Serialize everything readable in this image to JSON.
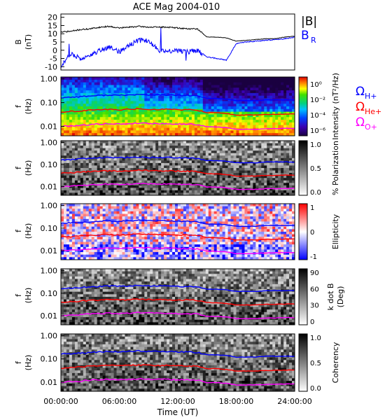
{
  "figure": {
    "title": "ACE Mag 2004-010",
    "xlabel": "Time (UT)",
    "xticks": [
      "00:00:00",
      "06:00:00",
      "12:00:00",
      "18:00:00",
      "24:00:00"
    ]
  },
  "colors": {
    "B_total": "#000000",
    "B_R": "#0000ff",
    "omega_H": "#0000ff",
    "omega_He": "#ff0000",
    "omega_O": "#ff00ff"
  },
  "legend": {
    "btotal": "|B|",
    "br": "B",
    "br_sub": "R",
    "oh": "Ω",
    "oh_sub": "H+",
    "ohe": "Ω",
    "ohe_sub": "He+",
    "oo": "Ω",
    "oo_sub": "O+"
  },
  "chart_data": [
    {
      "type": "line",
      "panel": "magnetic-field",
      "ylabel": "B",
      "yunit": "(nT)",
      "ylim": [
        -12,
        22
      ],
      "yticks": [
        "20",
        "15",
        "10",
        "5",
        "0",
        "-5",
        "-10"
      ],
      "x_hours": [
        0,
        1,
        2,
        3,
        4,
        5,
        6,
        7,
        8,
        9,
        10,
        11,
        12,
        13,
        14,
        15,
        16,
        17,
        18,
        19,
        20,
        21,
        22,
        23,
        24
      ],
      "series": [
        {
          "name": "|B|",
          "values": [
            11,
            11.5,
            12.5,
            13,
            14,
            14.5,
            13.5,
            14,
            14.5,
            14,
            14,
            14,
            13.5,
            13,
            13,
            8,
            8,
            7.5,
            5.5,
            6,
            6.5,
            7,
            7,
            8,
            8.5
          ]
        },
        {
          "name": "B_R",
          "values": [
            -10,
            -2,
            -5,
            -3,
            0,
            2,
            -1,
            3,
            6,
            5.5,
            0,
            -0.5,
            -0.5,
            -1,
            0,
            -4,
            -5,
            -6,
            4,
            5,
            5.5,
            6,
            6.5,
            7,
            8
          ]
        }
      ]
    },
    {
      "type": "heatmap",
      "panel": "intensity",
      "ylabel": "f",
      "yunit": "(Hz)",
      "yticks": [
        "1.00",
        "0.10",
        "0.01"
      ],
      "colorbar_label": "Intensity (nT²/Hz)",
      "colorbar_ticks": [
        "10⁰",
        "10⁻²",
        "10⁻⁴",
        "10⁻⁶"
      ],
      "colormap": "rainbow"
    },
    {
      "type": "heatmap",
      "panel": "polarization",
      "ylabel": "f",
      "yunit": "(Hz)",
      "yticks": [
        "1.00",
        "0.10",
        "0.01"
      ],
      "colorbar_label": "% Polarization",
      "colorbar_ticks": [
        "1.0",
        "0.5",
        "0.0"
      ],
      "colormap": "gray"
    },
    {
      "type": "heatmap",
      "panel": "ellipticity",
      "ylabel": "f",
      "yunit": "(Hz)",
      "yticks": [
        "1.00",
        "0.10",
        "0.01"
      ],
      "colorbar_label": "Ellipticity",
      "colorbar_ticks": [
        "1",
        "0",
        "-1"
      ],
      "colormap": "blue-white-red"
    },
    {
      "type": "heatmap",
      "panel": "kdotb",
      "ylabel": "f",
      "yunit": "(Hz)",
      "yticks": [
        "1.00",
        "0.10",
        "0.01"
      ],
      "colorbar_label": "k dot B",
      "colorbar_label2": "(Deg)",
      "colorbar_ticks": [
        "90",
        "60",
        "30",
        "0"
      ],
      "colormap": "gray"
    },
    {
      "type": "heatmap",
      "panel": "coherency",
      "ylabel": "f",
      "yunit": "(Hz)",
      "yticks": [
        "1.00",
        "0.10",
        "0.01"
      ],
      "colorbar_label": "Coherency",
      "colorbar_ticks": [
        "1.0",
        "0.5",
        "0.0"
      ],
      "colormap": "gray"
    }
  ],
  "gyrofrequencies": {
    "x_hours": [
      0,
      1,
      2,
      3,
      4,
      5,
      6,
      7,
      8,
      9,
      10,
      11,
      12,
      13,
      14,
      15,
      16,
      17,
      18,
      19,
      20,
      21,
      22,
      23,
      24
    ],
    "omega_H_hz": [
      0.16,
      0.17,
      0.18,
      0.19,
      0.2,
      0.21,
      0.2,
      0.21,
      0.22,
      0.21,
      0.21,
      0.21,
      0.2,
      0.2,
      0.19,
      0.15,
      0.15,
      0.14,
      0.12,
      0.12,
      0.12,
      0.13,
      0.13,
      0.13,
      0.13
    ],
    "omega_He_hz": [
      0.04,
      0.042,
      0.045,
      0.048,
      0.05,
      0.052,
      0.05,
      0.052,
      0.055,
      0.053,
      0.052,
      0.052,
      0.05,
      0.05,
      0.048,
      0.038,
      0.038,
      0.035,
      0.03,
      0.03,
      0.03,
      0.032,
      0.032,
      0.033,
      0.033
    ],
    "omega_O_hz": [
      0.01,
      0.0105,
      0.011,
      0.012,
      0.0125,
      0.013,
      0.0125,
      0.013,
      0.0138,
      0.0133,
      0.013,
      0.013,
      0.0125,
      0.0125,
      0.012,
      0.0095,
      0.0095,
      0.0088,
      0.0075,
      0.0075,
      0.0075,
      0.008,
      0.008,
      0.0083,
      0.0083
    ]
  }
}
